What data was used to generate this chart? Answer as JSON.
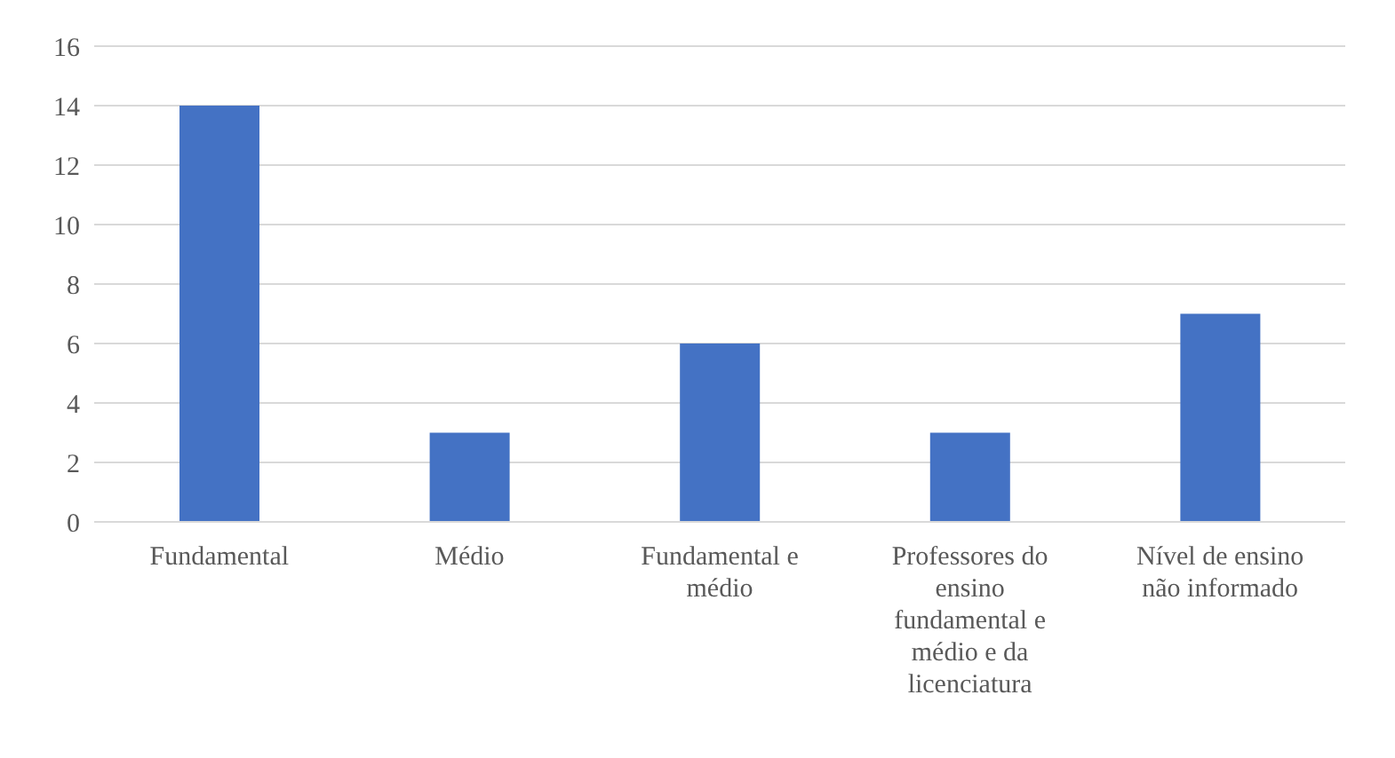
{
  "chart_data": {
    "type": "bar",
    "categories": [
      "Fundamental",
      "Médio",
      "Fundamental e médio",
      "Professores do ensino fundamental e médio e da licenciatura",
      "Nível de ensino não informado"
    ],
    "values": [
      14,
      3,
      6,
      3,
      7
    ],
    "color": "#4472c4",
    "ylim": [
      0,
      16
    ],
    "yticks": [
      0,
      2,
      4,
      6,
      8,
      10,
      12,
      14,
      16
    ],
    "grid": "y",
    "legend": false
  }
}
